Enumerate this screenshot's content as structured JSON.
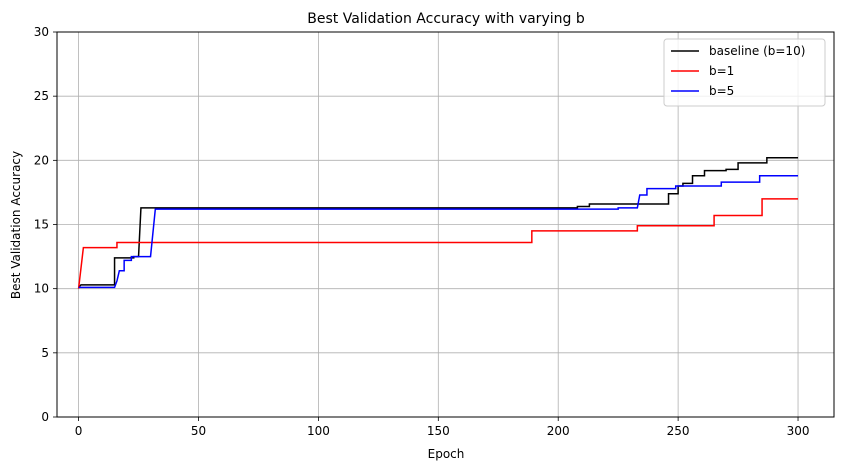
{
  "chart_data": {
    "type": "line",
    "title": "Best Validation Accuracy with varying b",
    "xlabel": "Epoch",
    "ylabel": "Best Validation Accuracy",
    "xlim": [
      -9,
      315
    ],
    "ylim": [
      0,
      30
    ],
    "xticks": [
      0,
      50,
      100,
      150,
      200,
      250,
      300
    ],
    "yticks": [
      0,
      5,
      10,
      15,
      20,
      25,
      30
    ],
    "grid": true,
    "legend_position": "top-right",
    "series": [
      {
        "name": "baseline (b=10)",
        "color": "#000000",
        "points": [
          [
            0,
            10.1
          ],
          [
            1,
            10.3
          ],
          [
            15,
            10.3
          ],
          [
            15,
            12.4
          ],
          [
            23,
            12.4
          ],
          [
            23,
            12.5
          ],
          [
            25,
            12.5
          ],
          [
            26,
            16.3
          ],
          [
            208,
            16.3
          ],
          [
            208,
            16.4
          ],
          [
            213,
            16.4
          ],
          [
            213,
            16.6
          ],
          [
            246,
            16.6
          ],
          [
            246,
            17.4
          ],
          [
            250,
            17.4
          ],
          [
            250,
            18.0
          ],
          [
            252,
            18.0
          ],
          [
            252,
            18.2
          ],
          [
            256,
            18.2
          ],
          [
            256,
            18.8
          ],
          [
            261,
            18.8
          ],
          [
            261,
            19.2
          ],
          [
            270,
            19.2
          ],
          [
            270,
            19.3
          ],
          [
            275,
            19.3
          ],
          [
            275,
            19.8
          ],
          [
            287,
            19.8
          ],
          [
            287,
            20.2
          ],
          [
            300,
            20.2
          ]
        ]
      },
      {
        "name": "b=1",
        "color": "#ff0000",
        "points": [
          [
            0,
            10.0
          ],
          [
            2,
            13.2
          ],
          [
            16,
            13.2
          ],
          [
            16,
            13.6
          ],
          [
            189,
            13.6
          ],
          [
            189,
            14.5
          ],
          [
            233,
            14.5
          ],
          [
            233,
            14.9
          ],
          [
            265,
            14.9
          ],
          [
            265,
            15.7
          ],
          [
            285,
            15.7
          ],
          [
            285,
            17.0
          ],
          [
            300,
            17.0
          ]
        ]
      },
      {
        "name": "b=5",
        "color": "#0000ff",
        "points": [
          [
            0,
            10.1
          ],
          [
            15,
            10.1
          ],
          [
            16,
            10.6
          ],
          [
            17,
            11.4
          ],
          [
            19,
            11.4
          ],
          [
            19,
            12.2
          ],
          [
            22,
            12.2
          ],
          [
            22,
            12.5
          ],
          [
            30,
            12.5
          ],
          [
            32,
            16.2
          ],
          [
            225,
            16.2
          ],
          [
            225,
            16.3
          ],
          [
            233,
            16.3
          ],
          [
            234,
            17.3
          ],
          [
            237,
            17.3
          ],
          [
            237,
            17.8
          ],
          [
            249,
            17.8
          ],
          [
            249,
            18.0
          ],
          [
            268,
            18.0
          ],
          [
            268,
            18.3
          ],
          [
            284,
            18.3
          ],
          [
            284,
            18.8
          ],
          [
            300,
            18.8
          ]
        ]
      }
    ]
  }
}
